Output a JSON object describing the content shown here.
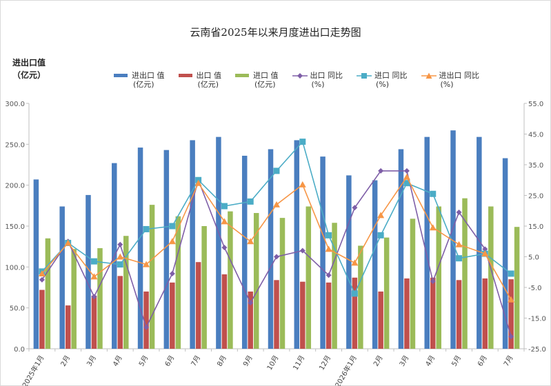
{
  "chart_data": {
    "type": "bar",
    "title": "云南省2025年以来月度进出口走势图",
    "ylabel": [
      "进出口值",
      "（亿元）"
    ],
    "categories": [
      "2025年1月",
      "2月",
      "3月",
      "4月",
      "5月",
      "6月",
      "7月",
      "8月",
      "9月",
      "10月",
      "11月",
      "12月",
      "2026年1月",
      "2月",
      "3月",
      "4月",
      "5月",
      "6月",
      "7月"
    ],
    "ylim": [
      0,
      300
    ],
    "y2lim": [
      -25,
      55
    ],
    "yticks": [
      "0.0",
      "50.0",
      "100.0",
      "150.0",
      "200.0",
      "250.0",
      "300.0"
    ],
    "y2ticks": [
      "-25.0",
      "-15.0",
      "-5.0",
      "5.0",
      "15.0",
      "25.0",
      "35.0",
      "45.0",
      "55.0"
    ],
    "bar_series": [
      {
        "name": "进出口 值",
        "unit": "(亿元)",
        "color": "#4a7ebf",
        "values": [
          207,
          174,
          188,
          227,
          246,
          243,
          255,
          259,
          236,
          244,
          255,
          235,
          212,
          206,
          244,
          259,
          267,
          259,
          233
        ]
      },
      {
        "name": "出口 值",
        "unit": "(亿元)",
        "color": "#c0504d",
        "values": [
          72,
          53,
          65,
          89,
          70,
          81,
          106,
          91,
          70,
          84,
          82,
          81,
          87,
          70,
          86,
          87,
          84,
          86,
          85
        ]
      },
      {
        "name": "进口 值",
        "unit": "(亿元)",
        "color": "#9bbb59",
        "values": [
          135,
          122,
          123,
          138,
          176,
          162,
          150,
          168,
          166,
          160,
          174,
          154,
          126,
          136,
          159,
          174,
          184,
          174,
          149
        ]
      }
    ],
    "line_series": [
      {
        "name": "出口 同比",
        "unit": "(%)",
        "color": "#7e5ea7",
        "marker": "diamond",
        "values": [
          -2.5,
          10,
          -8,
          9,
          -18,
          -0.5,
          30,
          8,
          -10,
          5,
          7,
          -1,
          21,
          33,
          33,
          -3,
          19.5,
          7.5,
          -21
        ]
      },
      {
        "name": "进口 同比",
        "unit": "(%)",
        "color": "#4bacc6",
        "marker": "square",
        "values": [
          0.2,
          9.5,
          3.5,
          2.5,
          14,
          15,
          30,
          21.5,
          23,
          33,
          42.5,
          12,
          -7,
          12,
          29,
          25.5,
          4.5,
          6,
          -0.5
        ]
      },
      {
        "name": "进出口 同比",
        "unit": "(%)",
        "color": "#f79646",
        "marker": "triangle",
        "values": [
          -0.5,
          9.5,
          -1.5,
          5,
          2.5,
          10,
          29,
          16.5,
          10,
          22,
          28.5,
          7.5,
          3,
          18.5,
          31,
          14.5,
          9,
          6,
          -9
        ]
      }
    ],
    "grid": false,
    "legend": "top"
  }
}
